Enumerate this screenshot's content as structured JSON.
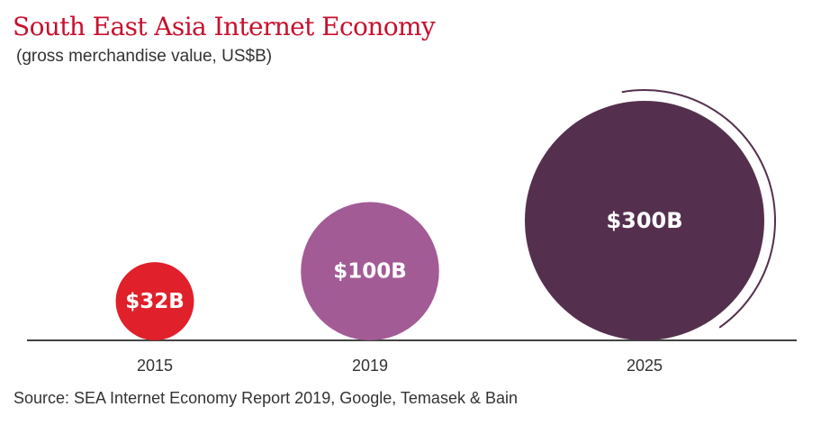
{
  "title": "South East Asia Internet Economy",
  "subtitle": "(gross merchandise value, US$B)",
  "source": "Source: SEA Internet Economy Report 2019, Google, Temasek & Bain",
  "chart_data": {
    "type": "bubble",
    "title": "South East Asia Internet Economy",
    "subtitle": "(gross merchandise value, US$B)",
    "categories": [
      "2015",
      "2019",
      "2025"
    ],
    "values": [
      32,
      100,
      300
    ],
    "labels": [
      "$32B",
      "$100B",
      "$300B"
    ],
    "unit": "US$B",
    "colors": [
      "#e0202a",
      "#a35b96",
      "#55304e"
    ],
    "grid": false,
    "legend": "none"
  }
}
